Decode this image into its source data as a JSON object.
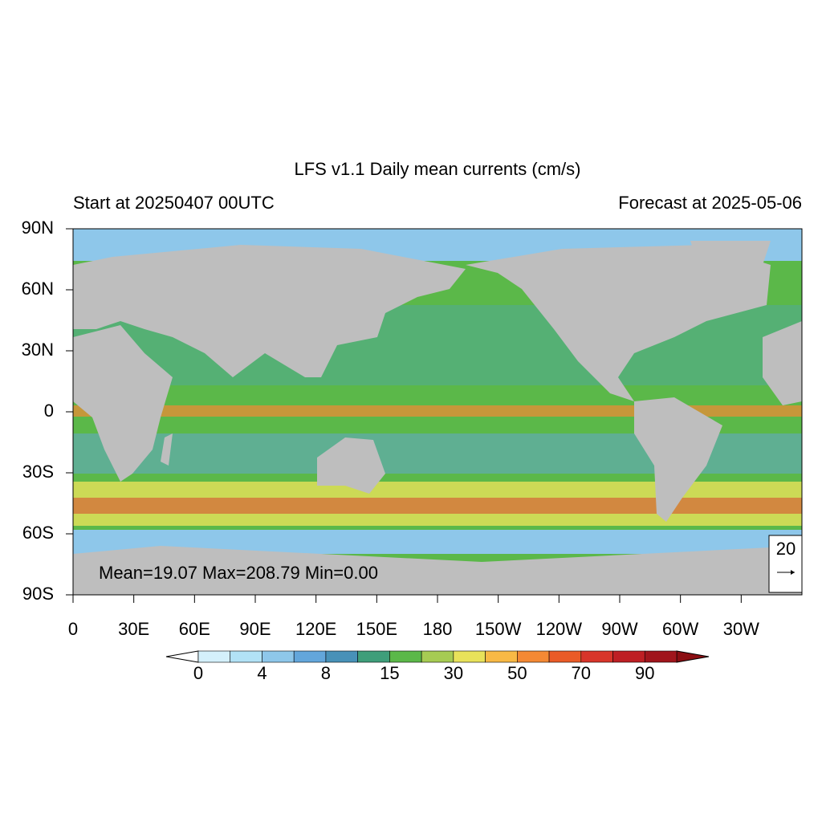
{
  "map": {
    "title": "LFS v1.1 Daily mean currents (cm/s)",
    "subtitle_left": "Start at 20250407 00UTC",
    "subtitle_right": "Forecast at 2025-05-06",
    "lat_ticks": [
      {
        "value": 90,
        "label": "90N"
      },
      {
        "value": 60,
        "label": "60N"
      },
      {
        "value": 30,
        "label": "30N"
      },
      {
        "value": 0,
        "label": "0"
      },
      {
        "value": -30,
        "label": "30S"
      },
      {
        "value": -60,
        "label": "60S"
      },
      {
        "value": -90,
        "label": "90S"
      }
    ],
    "lon_ticks": [
      {
        "value": 0,
        "label": "0"
      },
      {
        "value": 30,
        "label": "30E"
      },
      {
        "value": 60,
        "label": "60E"
      },
      {
        "value": 90,
        "label": "90E"
      },
      {
        "value": 120,
        "label": "120E"
      },
      {
        "value": 150,
        "label": "150E"
      },
      {
        "value": 180,
        "label": "180"
      },
      {
        "value": 210,
        "label": "150W"
      },
      {
        "value": 240,
        "label": "120W"
      },
      {
        "value": 270,
        "label": "90W"
      },
      {
        "value": 300,
        "label": "60W"
      },
      {
        "value": 330,
        "label": "30W"
      }
    ],
    "latlim": [
      -90,
      90
    ],
    "lonlim": [
      0,
      360
    ],
    "stats": "Mean=19.07  Max=208.79  Min=0.00",
    "vector_reference": "20",
    "colorbar": {
      "colors": [
        "#d4f0fb",
        "#b2e2f6",
        "#8ec7ea",
        "#63a6db",
        "#4891b8",
        "#3f9e7a",
        "#5bb849",
        "#a6cb53",
        "#e8e25a",
        "#f8b945",
        "#f48934",
        "#ea5b27",
        "#d8352a",
        "#be1f24",
        "#a0151c"
      ],
      "under_color": "#ffffff",
      "over_color": "#8b0e12",
      "labels": [
        0,
        4,
        8,
        15,
        30,
        50,
        70,
        90
      ]
    }
  }
}
